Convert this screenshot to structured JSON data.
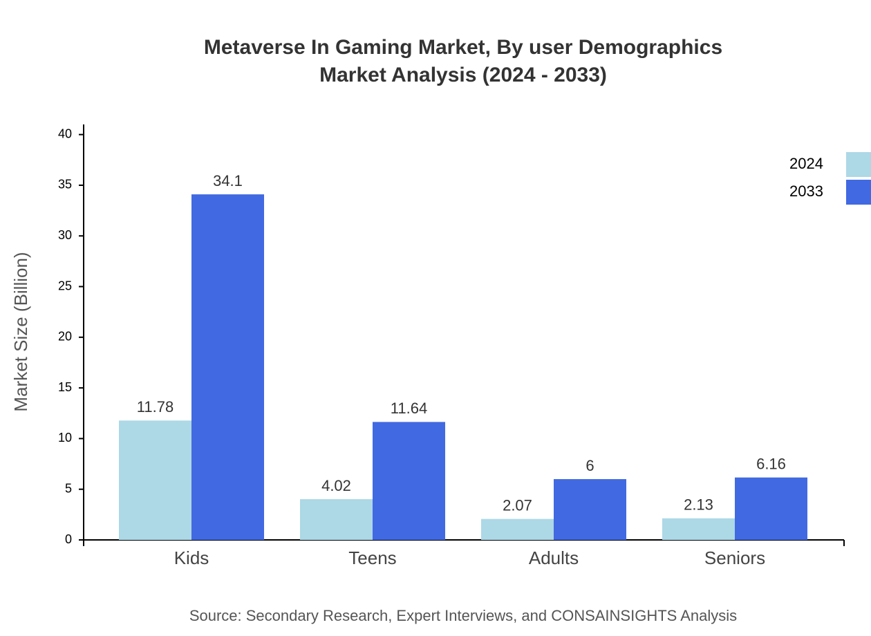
{
  "chart_data": {
    "type": "bar",
    "title": "Metaverse In Gaming Market, By user Demographics",
    "subtitle": "Market Analysis (2024 - 2033)",
    "y_label": "Market Size (Billion)",
    "source": "Source: Secondary Research, Expert Interviews, and CONSAINSIGHTS Analysis",
    "categories": [
      "Kids",
      "Teens",
      "Adults",
      "Seniors"
    ],
    "series": [
      {
        "name": "2024",
        "color": "#add8e6",
        "values": [
          11.78,
          4.02,
          2.07,
          2.13
        ]
      },
      {
        "name": "2033",
        "color": "#4169e1",
        "values": [
          34.1,
          11.64,
          6,
          6.16
        ]
      }
    ],
    "ylim": [
      0,
      41
    ],
    "yticks": [
      0,
      5,
      10,
      15,
      20,
      25,
      30,
      35,
      40
    ],
    "legend": "top-right"
  }
}
